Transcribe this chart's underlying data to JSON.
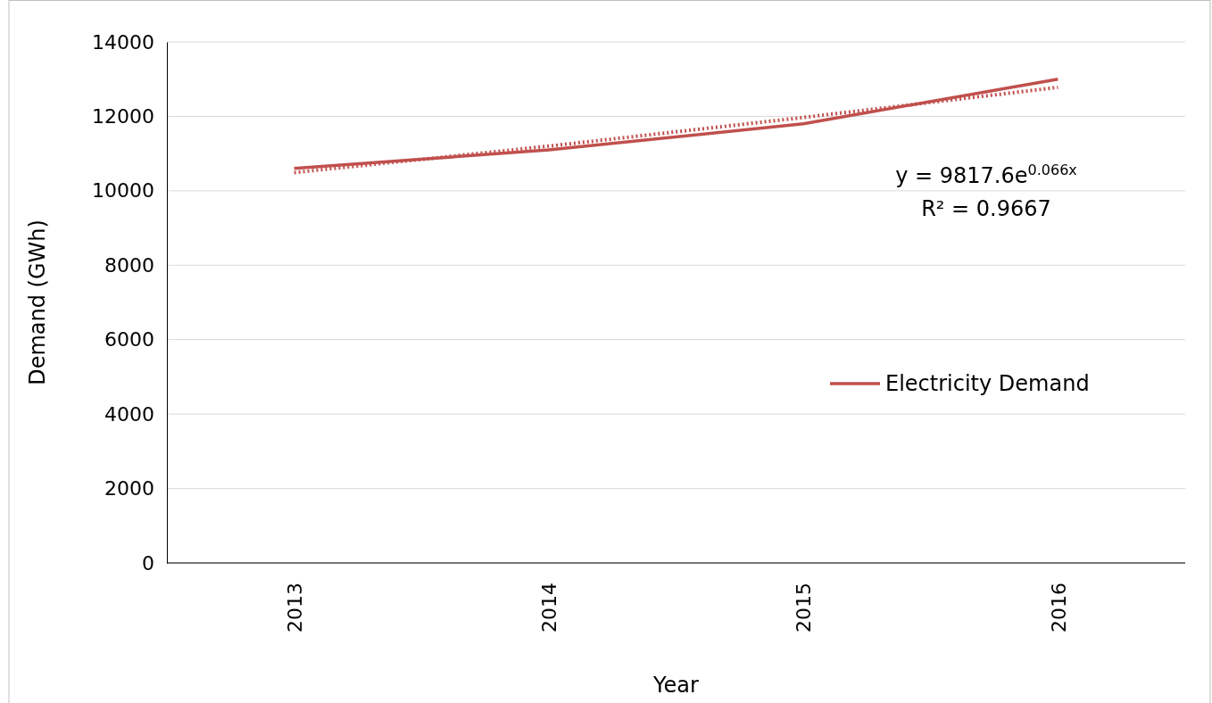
{
  "chart_data": {
    "type": "line",
    "xlabel": "Year",
    "ylabel": "Demand (GWh)",
    "categories": [
      "2013",
      "2014",
      "2015",
      "2016"
    ],
    "series": [
      {
        "name": "Electricity Demand",
        "color": "#c0504d",
        "values": [
          10600,
          11100,
          11800,
          13000
        ]
      },
      {
        "type": "line",
        "color": "#c0504d",
        "line_style": "dotted",
        "values": [
          10490,
          11200,
          11970,
          12780
        ]
      }
    ],
    "ylim": [
      0,
      14000
    ],
    "yticks": [
      0,
      2000,
      4000,
      6000,
      8000,
      10000,
      12000,
      14000
    ],
    "grid": "y",
    "legend": "right",
    "marker": "none",
    "line_style": "solid",
    "annotations": [
      "y = 9817.6e$^{0.066x}$",
      "R² = 0.9667"
    ]
  }
}
